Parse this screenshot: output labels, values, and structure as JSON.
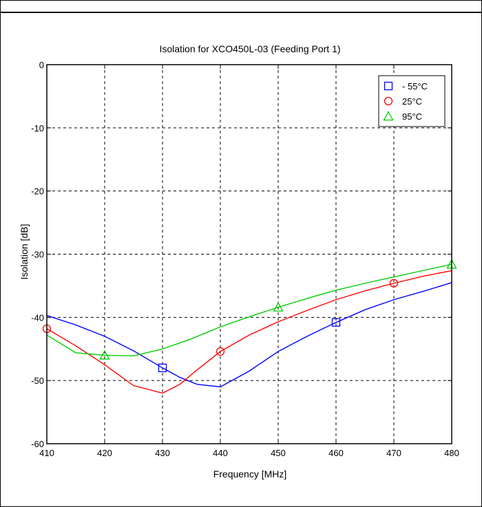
{
  "chart_data": {
    "type": "line",
    "title": "Isolation for XCO450L-03 (Feeding Port 1)",
    "xlabel": "Frequency [MHz]",
    "ylabel": "Isolation [dB]",
    "xlim": [
      410,
      480
    ],
    "ylim": [
      -60,
      0
    ],
    "xticks": [
      410,
      420,
      430,
      440,
      450,
      460,
      470,
      480
    ],
    "yticks": [
      0,
      -10,
      -20,
      -30,
      -40,
      -50,
      -60
    ],
    "grid": true,
    "legend_position": "top-right",
    "series": [
      {
        "name": "- 55°C",
        "color": "#0000ff",
        "marker": "square",
        "markers_at": [
          430,
          460
        ],
        "x": [
          410,
          415,
          420,
          425,
          430,
          433,
          436,
          440,
          445,
          450,
          455,
          460,
          465,
          470,
          475,
          480
        ],
        "y": [
          -39.7,
          -41.2,
          -43.0,
          -45.3,
          -48.0,
          -49.5,
          -50.6,
          -51.0,
          -48.5,
          -45.4,
          -43.0,
          -40.8,
          -38.8,
          -37.2,
          -35.9,
          -34.5
        ]
      },
      {
        "name": "25°C",
        "color": "#ff0000",
        "marker": "circle",
        "markers_at": [
          410,
          440,
          470
        ],
        "x": [
          410,
          415,
          420,
          425,
          430,
          433,
          436,
          440,
          445,
          450,
          455,
          460,
          465,
          470,
          475,
          480
        ],
        "y": [
          -41.8,
          -44.5,
          -47.5,
          -50.8,
          -52.0,
          -50.6,
          -48.3,
          -45.4,
          -42.8,
          -40.7,
          -38.9,
          -37.2,
          -35.8,
          -34.6,
          -33.5,
          -32.6
        ]
      },
      {
        "name": "95°C",
        "color": "#00cc00",
        "marker": "triangle",
        "markers_at": [
          420,
          450,
          480
        ],
        "x": [
          410,
          415,
          420,
          425,
          430,
          435,
          440,
          445,
          450,
          455,
          460,
          465,
          470,
          475,
          480
        ],
        "y": [
          -42.8,
          -45.6,
          -46.0,
          -46.1,
          -45.0,
          -43.4,
          -41.5,
          -39.9,
          -38.4,
          -37.0,
          -35.7,
          -34.6,
          -33.6,
          -32.6,
          -31.6
        ]
      }
    ]
  }
}
